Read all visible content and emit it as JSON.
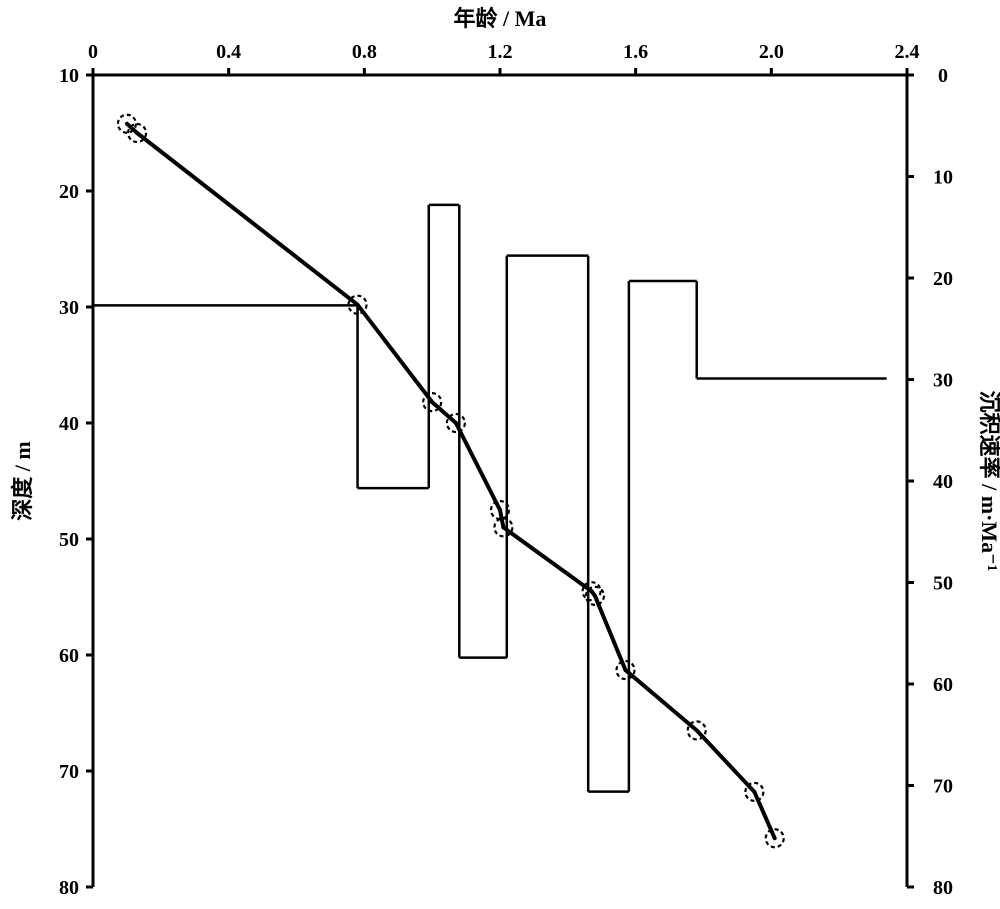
{
  "chart_data": {
    "type": "line",
    "x_top": {
      "label": "年龄 / Ma",
      "range": [
        0,
        2.4
      ],
      "ticks": [
        "0",
        "0.4",
        "0.8",
        "1.2",
        "1.6",
        "2.0",
        "2.4"
      ],
      "tick_values": [
        0,
        0.4,
        0.8,
        1.2,
        1.6,
        2.0,
        2.4
      ]
    },
    "y_left": {
      "label": "深度 / m",
      "range": [
        10,
        80
      ],
      "ticks": [
        "10",
        "20",
        "30",
        "40",
        "50",
        "60",
        "70",
        "80"
      ],
      "tick_values": [
        10,
        20,
        30,
        40,
        50,
        60,
        70,
        80
      ]
    },
    "y_right": {
      "label": "沉积速率 / m·Ma⁻¹",
      "range": [
        0,
        80
      ],
      "ticks": [
        "0",
        "10",
        "20",
        "30",
        "40",
        "50",
        "60",
        "70",
        "80"
      ],
      "tick_values": [
        0,
        10,
        20,
        30,
        40,
        50,
        60,
        70,
        80
      ]
    },
    "series": [
      {
        "kind": "age-depth",
        "markers": "dashed-circle",
        "points": [
          [
            0.1,
            14.2
          ],
          [
            0.13,
            15.0
          ],
          [
            0.78,
            29.8
          ],
          [
            1.0,
            38.2
          ],
          [
            1.07,
            40.0
          ],
          [
            1.2,
            47.5
          ],
          [
            1.21,
            49.0
          ],
          [
            1.47,
            54.5
          ],
          [
            1.48,
            54.9
          ],
          [
            1.57,
            61.3
          ],
          [
            1.78,
            66.5
          ],
          [
            1.95,
            71.8
          ],
          [
            2.01,
            75.8
          ]
        ]
      },
      {
        "kind": "sedimentation-rate-step",
        "points": [
          [
            0,
            22.7
          ],
          [
            0.78,
            22.7
          ],
          [
            0.78,
            40.7
          ],
          [
            0.99,
            40.7
          ],
          [
            0.99,
            12.8
          ],
          [
            1.08,
            12.8
          ],
          [
            1.08,
            57.4
          ],
          [
            1.22,
            57.4
          ],
          [
            1.22,
            17.8
          ],
          [
            1.46,
            17.8
          ],
          [
            1.46,
            70.6
          ],
          [
            1.58,
            70.6
          ],
          [
            1.58,
            20.3
          ],
          [
            1.78,
            20.3
          ],
          [
            1.78,
            29.9
          ],
          [
            2.34,
            29.9
          ]
        ]
      }
    ],
    "grid": false
  }
}
